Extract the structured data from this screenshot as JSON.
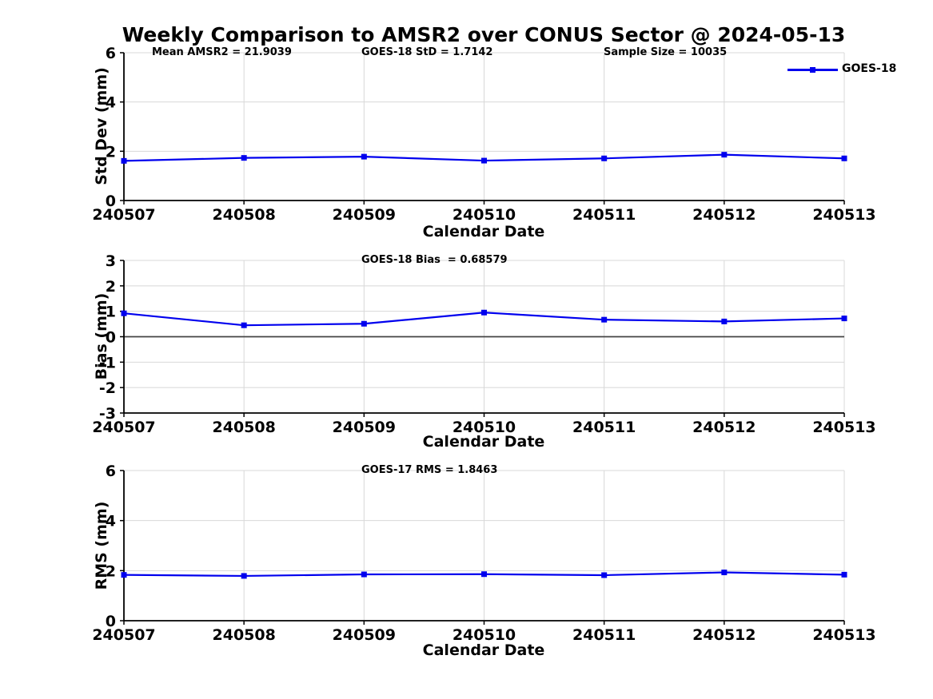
{
  "title": "Weekly Comparison to AMSR2 over CONUS Sector @ 2024-05-13",
  "xlabel": "Calendar Date",
  "x_categories": [
    "240507",
    "240508",
    "240509",
    "240510",
    "240511",
    "240512",
    "240513"
  ],
  "legend": {
    "label": "GOES-18",
    "position": "top-right-of-first-subplot",
    "color": "#0000EE"
  },
  "colors": {
    "line": "#0000EE",
    "marker": "#0000EE",
    "grid": "#D8D8D8",
    "axis": "#000000",
    "zero_line": "#444444",
    "text": "#000000",
    "background": "#FFFFFF"
  },
  "chart_data": [
    {
      "type": "line",
      "name": "std_dev",
      "title_annotations": [
        "Mean AMSR2 = 21.9039",
        "GOES-18 StD = 1.7142",
        "Sample Size = 10035"
      ],
      "xlabel": "Calendar Date",
      "ylabel": "Std Dev (mm)",
      "ylim": [
        0,
        6
      ],
      "yticks": [
        0,
        2,
        4,
        6
      ],
      "grid": true,
      "zero_line": false,
      "categories": [
        "240507",
        "240508",
        "240509",
        "240510",
        "240511",
        "240512",
        "240513"
      ],
      "series": [
        {
          "name": "GOES-18",
          "values": [
            1.61,
            1.73,
            1.78,
            1.62,
            1.71,
            1.86,
            1.71
          ]
        }
      ],
      "legend_entries": [
        "GOES-18"
      ]
    },
    {
      "type": "line",
      "name": "bias",
      "title_annotations": [
        "GOES-18 Bias  = 0.68579"
      ],
      "xlabel": "Calendar Date",
      "ylabel": "Bias (mm)",
      "ylim": [
        -3,
        3
      ],
      "yticks": [
        3,
        2,
        1,
        0,
        -1,
        -2,
        -3
      ],
      "grid": true,
      "zero_line": true,
      "categories": [
        "240507",
        "240508",
        "240509",
        "240510",
        "240511",
        "240512",
        "240513"
      ],
      "series": [
        {
          "name": "GOES-18",
          "values": [
            0.92,
            0.45,
            0.51,
            0.95,
            0.67,
            0.6,
            0.72
          ]
        }
      ],
      "legend_entries": []
    },
    {
      "type": "line",
      "name": "rms",
      "title_annotations": [
        "GOES-17 RMS = 1.8463"
      ],
      "xlabel": "Calendar Date",
      "ylabel": "RMS (mm)",
      "ylim": [
        0,
        6
      ],
      "yticks": [
        0,
        2,
        4,
        6
      ],
      "grid": true,
      "zero_line": false,
      "categories": [
        "240507",
        "240508",
        "240509",
        "240510",
        "240511",
        "240512",
        "240513"
      ],
      "series": [
        {
          "name": "GOES-17",
          "values": [
            1.83,
            1.79,
            1.85,
            1.86,
            1.82,
            1.93,
            1.84
          ]
        }
      ],
      "legend_entries": []
    }
  ]
}
